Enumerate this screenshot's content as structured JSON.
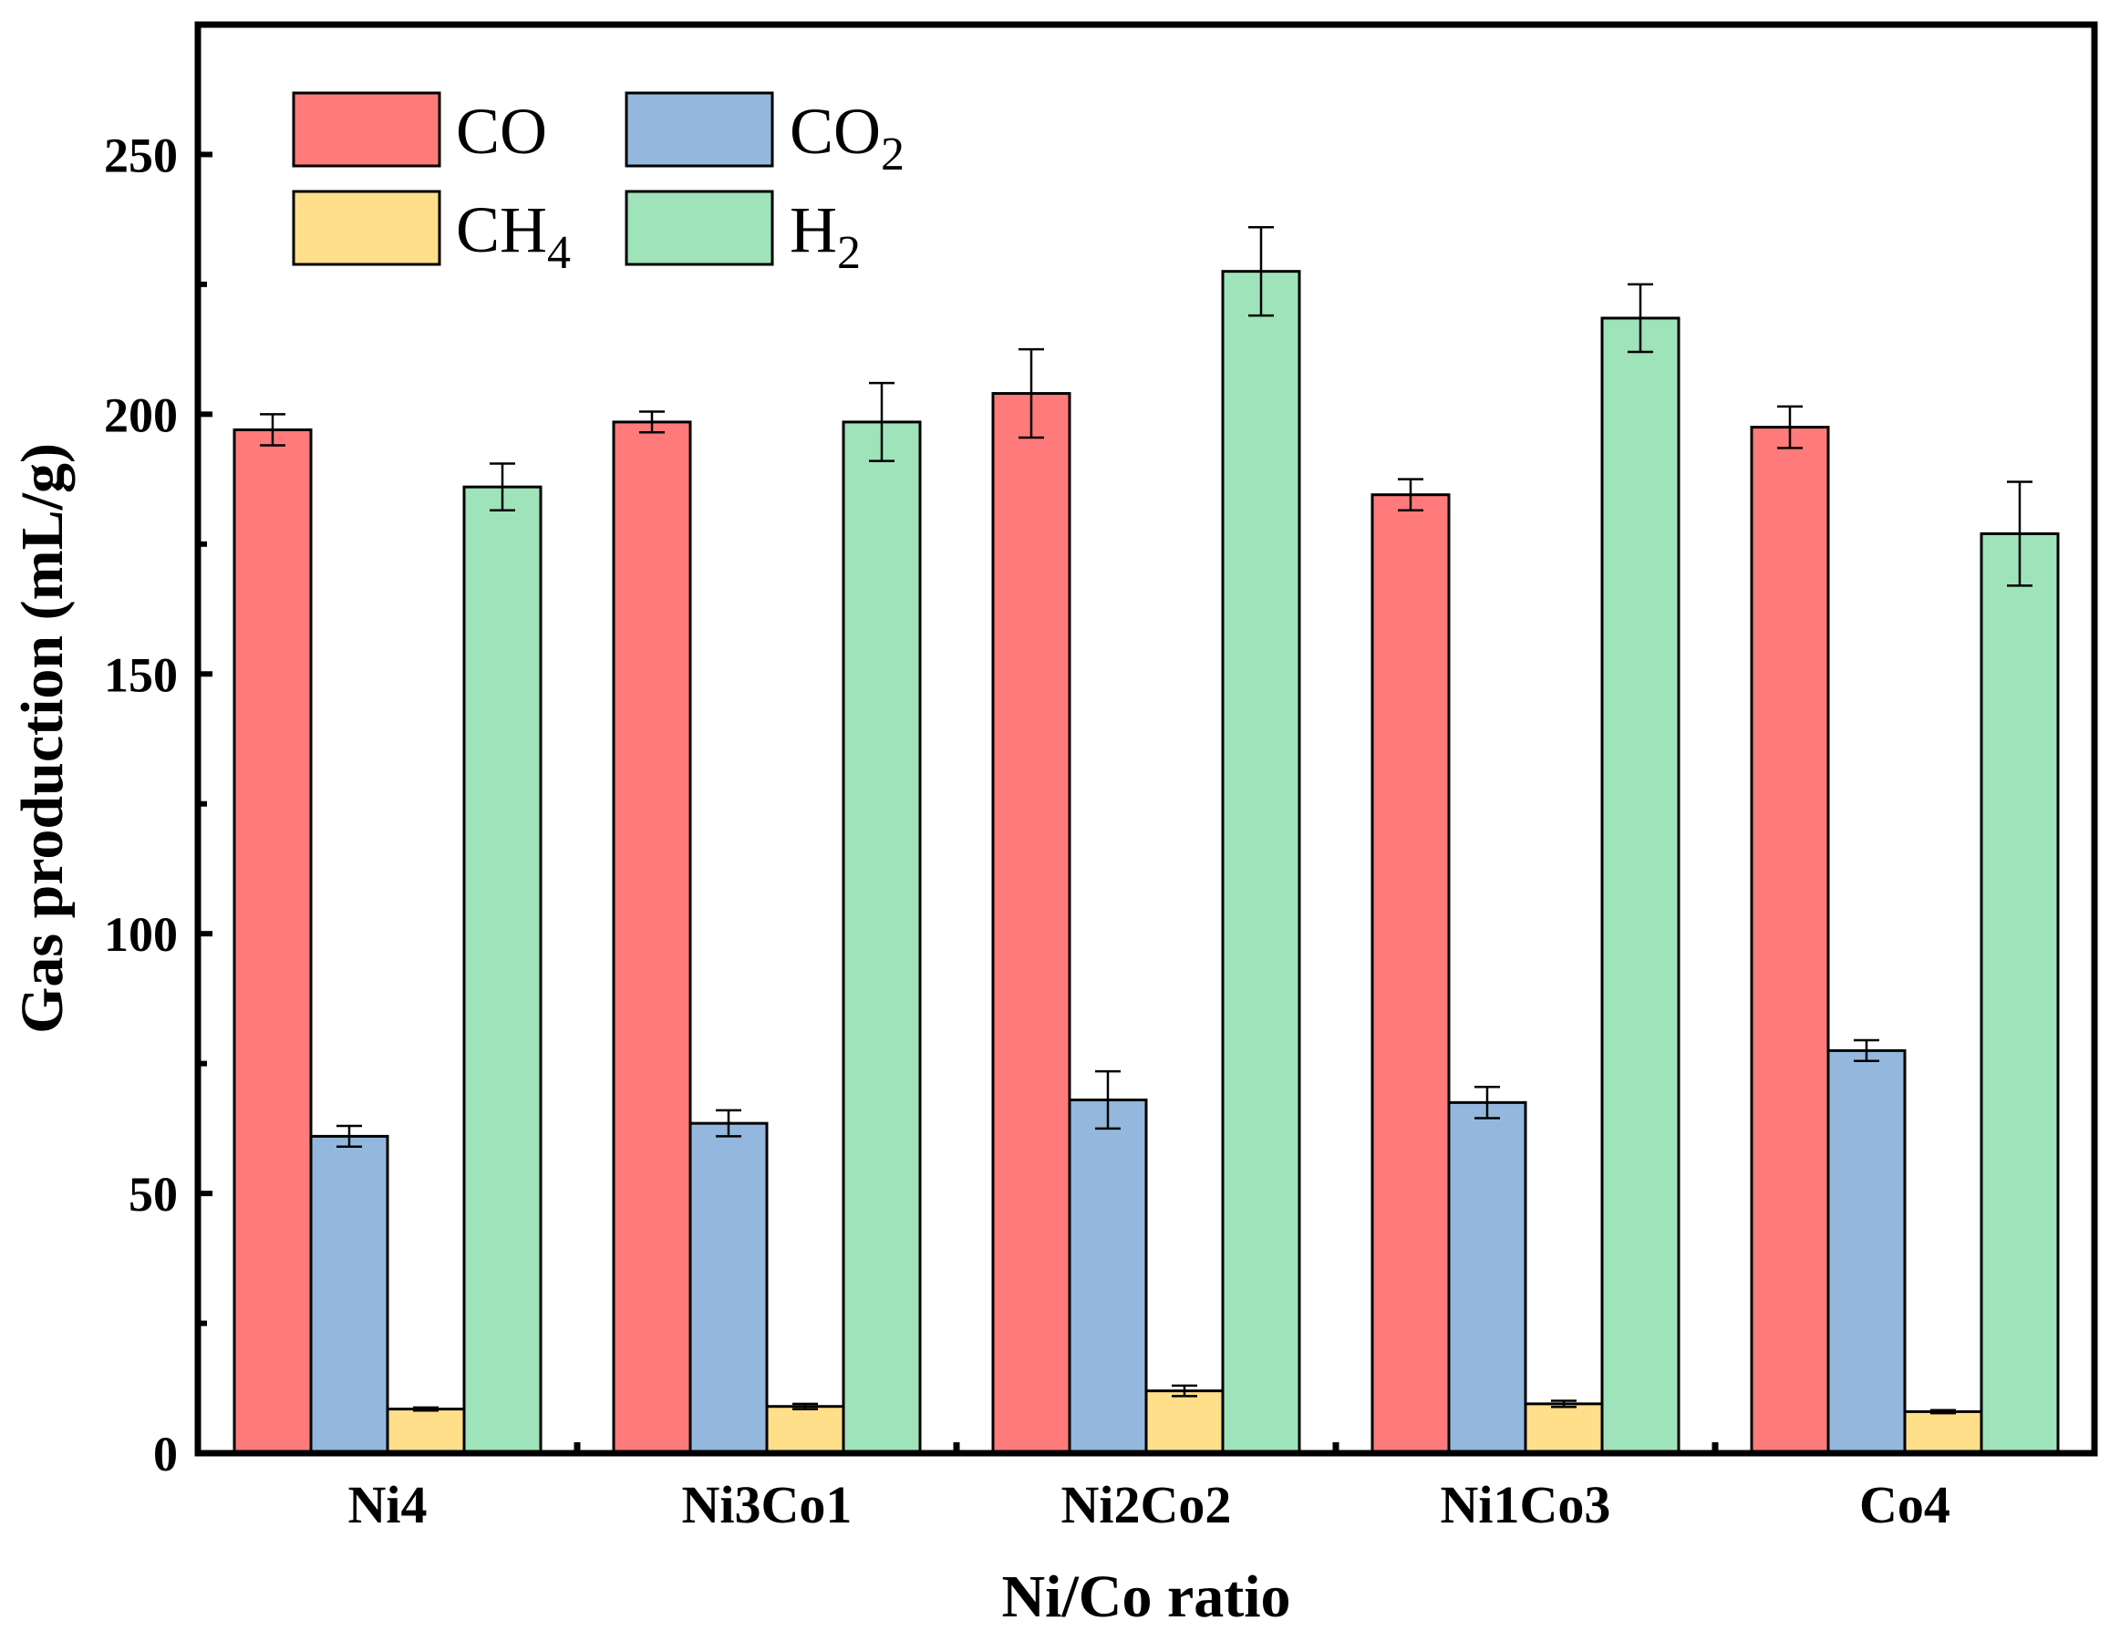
{
  "chart_data": {
    "type": "bar",
    "title": "",
    "xlabel": "Ni/Co ratio",
    "ylabel": "Gas production (mL/g)",
    "ylim": [
      0,
      275
    ],
    "yticks": [
      0,
      50,
      100,
      150,
      200,
      250
    ],
    "categories": [
      "Ni4",
      "Ni3Co1",
      "Ni2Co2",
      "Ni1Co3",
      "Co4"
    ],
    "series": [
      {
        "name": "CO",
        "legend_main": "CO",
        "legend_sub": "",
        "color": "#FF7B7B",
        "values": [
          197,
          198.5,
          204,
          184.5,
          197.5
        ],
        "errors": [
          3,
          2,
          8.5,
          3,
          4
        ]
      },
      {
        "name": "CO2",
        "legend_main": "CO",
        "legend_sub": "2",
        "color": "#94B8DD",
        "values": [
          61,
          63.5,
          68,
          67.5,
          77.5
        ],
        "errors": [
          2,
          2.5,
          5.5,
          3,
          2
        ]
      },
      {
        "name": "CH4",
        "legend_main": "CH",
        "legend_sub": "4",
        "color": "#FFDF8A",
        "values": [
          8.5,
          9,
          12,
          9.5,
          8
        ],
        "errors": [
          0.3,
          0.5,
          1,
          0.6,
          0.3
        ]
      },
      {
        "name": "H2",
        "legend_main": "H",
        "legend_sub": "2",
        "color": "#9FE3BA",
        "values": [
          186,
          198.5,
          227.5,
          218.5,
          177
        ],
        "errors": [
          4.5,
          7.5,
          8.5,
          6.5,
          10
        ]
      }
    ],
    "legend_position": "top-left",
    "grid": false
  }
}
